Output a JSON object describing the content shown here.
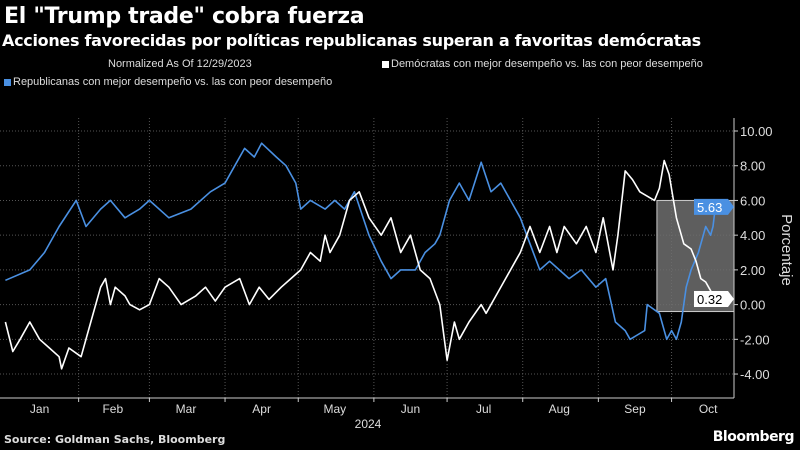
{
  "title": "El \"Trump trade\" cobra fuerza",
  "subtitle": "Acciones favorecidas por políticas republicanas superan a favoritas demócratas",
  "source": "Source: Goldman Sachs, Bloomberg",
  "logo": "Bloomberg",
  "chart_data": {
    "type": "line",
    "note": "Normalized As Of 12/29/2023",
    "ylabel": "Porcentaje",
    "xlabel": "2024",
    "x_unit": "day of year 2024",
    "ylim": [
      -5.5,
      10.5
    ],
    "xlim": [
      0,
      300
    ],
    "yticks": [
      -4,
      -2,
      0,
      2,
      4,
      6,
      8,
      10
    ],
    "ytick_labels": [
      "-4.00",
      "-2.00",
      "0.00",
      "2.00",
      "4.00",
      "6.00",
      "8.00",
      "10.00"
    ],
    "month_labels": [
      "Jan",
      "Feb",
      "Mar",
      "Apr",
      "May",
      "Jun",
      "Jul",
      "Aug",
      "Sep",
      "Oct"
    ],
    "month_label_days": [
      15,
      45,
      75,
      106,
      136,
      167,
      197,
      228,
      259,
      289
    ],
    "month_start_days": [
      31,
      60,
      91,
      121,
      152,
      182,
      213,
      244,
      274
    ],
    "highlight": {
      "x": [
        268,
        300
      ],
      "y": [
        -0.4,
        6.0
      ]
    },
    "grid": true,
    "series": [
      {
        "name": "Republicanas con mejor desempeño vs. las con peor desempeño",
        "color": "#4a90e2",
        "last_label": "5.63",
        "points": [
          [
            1,
            1.4
          ],
          [
            11,
            2
          ],
          [
            17,
            3
          ],
          [
            23,
            4.5
          ],
          [
            30,
            6
          ],
          [
            34,
            4.5
          ],
          [
            40,
            5.5
          ],
          [
            44,
            6
          ],
          [
            50,
            5
          ],
          [
            56,
            5.5
          ],
          [
            60,
            6
          ],
          [
            68,
            5
          ],
          [
            77,
            5.5
          ],
          [
            85,
            6.5
          ],
          [
            91,
            7
          ],
          [
            95,
            8
          ],
          [
            99,
            9
          ],
          [
            103,
            8.5
          ],
          [
            106,
            9.3
          ],
          [
            112,
            8.5
          ],
          [
            116,
            8
          ],
          [
            120,
            7
          ],
          [
            122,
            5.5
          ],
          [
            126,
            6
          ],
          [
            132,
            5.5
          ],
          [
            136,
            6
          ],
          [
            140,
            5.5
          ],
          [
            144,
            6.5
          ],
          [
            150,
            4
          ],
          [
            155,
            2.5
          ],
          [
            159,
            1.5
          ],
          [
            163,
            2
          ],
          [
            169,
            2
          ],
          [
            173,
            3
          ],
          [
            177,
            3.5
          ],
          [
            179,
            4
          ],
          [
            183,
            6
          ],
          [
            187,
            7
          ],
          [
            191,
            6
          ],
          [
            196,
            8.2
          ],
          [
            200,
            6.5
          ],
          [
            204,
            7
          ],
          [
            208,
            6
          ],
          [
            212,
            5
          ],
          [
            216,
            3.5
          ],
          [
            220,
            2
          ],
          [
            224,
            2.5
          ],
          [
            228,
            2
          ],
          [
            232,
            1.5
          ],
          [
            237,
            2
          ],
          [
            243,
            1
          ],
          [
            247,
            1.5
          ],
          [
            251,
            -1
          ],
          [
            255,
            -1.5
          ],
          [
            257,
            -2
          ],
          [
            263,
            -1.5
          ],
          [
            264,
            0
          ],
          [
            269,
            -0.5
          ],
          [
            272,
            -2
          ],
          [
            274,
            -1.5
          ],
          [
            276,
            -2
          ],
          [
            278,
            -1
          ],
          [
            280,
            1
          ],
          [
            282,
            2
          ],
          [
            285,
            3
          ],
          [
            287,
            4
          ],
          [
            288,
            4.5
          ],
          [
            290,
            4
          ],
          [
            291,
            4.5
          ],
          [
            292,
            5.7
          ],
          [
            293,
            5.63
          ]
        ]
      },
      {
        "name": "Demócratas con mejor desempeño vs. las con peor desempeño",
        "color": "#ffffff",
        "last_label": "0.32",
        "points": [
          [
            1,
            -1
          ],
          [
            4,
            -2.7
          ],
          [
            7,
            -2
          ],
          [
            11,
            -1
          ],
          [
            15,
            -2
          ],
          [
            19,
            -2.5
          ],
          [
            23,
            -3
          ],
          [
            24,
            -3.7
          ],
          [
            27,
            -2.5
          ],
          [
            32,
            -3
          ],
          [
            36,
            -1
          ],
          [
            40,
            1
          ],
          [
            42,
            1.5
          ],
          [
            44,
            0
          ],
          [
            46,
            1
          ],
          [
            50,
            0.5
          ],
          [
            52,
            0
          ],
          [
            56,
            -0.3
          ],
          [
            60,
            0
          ],
          [
            64,
            1.5
          ],
          [
            68,
            1
          ],
          [
            73,
            0
          ],
          [
            79,
            0.5
          ],
          [
            83,
            1
          ],
          [
            87,
            0.2
          ],
          [
            91,
            1
          ],
          [
            97,
            1.5
          ],
          [
            101,
            0
          ],
          [
            105,
            1
          ],
          [
            109,
            0.3
          ],
          [
            114,
            1
          ],
          [
            118,
            1.5
          ],
          [
            122,
            2
          ],
          [
            126,
            3
          ],
          [
            130,
            2.5
          ],
          [
            132,
            4
          ],
          [
            134,
            3
          ],
          [
            138,
            4
          ],
          [
            142,
            6
          ],
          [
            146,
            6.5
          ],
          [
            150,
            5
          ],
          [
            155,
            4
          ],
          [
            159,
            5
          ],
          [
            163,
            3
          ],
          [
            167,
            4
          ],
          [
            171,
            2
          ],
          [
            175,
            1.5
          ],
          [
            179,
            0
          ],
          [
            182,
            -3.2
          ],
          [
            185,
            -1
          ],
          [
            187,
            -2
          ],
          [
            191,
            -1
          ],
          [
            196,
            0
          ],
          [
            198,
            -0.5
          ],
          [
            202,
            0.5
          ],
          [
            206,
            1.5
          ],
          [
            210,
            2.5
          ],
          [
            212,
            3
          ],
          [
            216,
            4.5
          ],
          [
            220,
            3
          ],
          [
            224,
            4.5
          ],
          [
            227,
            3
          ],
          [
            230,
            4.5
          ],
          [
            235,
            3.5
          ],
          [
            239,
            4.5
          ],
          [
            243,
            3
          ],
          [
            246,
            5
          ],
          [
            250,
            2
          ],
          [
            252,
            4
          ],
          [
            255,
            7.7
          ],
          [
            258,
            7.2
          ],
          [
            261,
            6.5
          ],
          [
            267,
            6
          ],
          [
            269,
            6.7
          ],
          [
            271,
            8.3
          ],
          [
            273,
            7.5
          ],
          [
            276,
            5
          ],
          [
            279,
            3.5
          ],
          [
            282,
            3.2
          ],
          [
            284,
            2.5
          ],
          [
            286,
            1.5
          ],
          [
            288,
            1.3
          ],
          [
            290,
            0.8
          ],
          [
            292,
            0
          ],
          [
            293,
            0.32
          ]
        ]
      }
    ]
  }
}
